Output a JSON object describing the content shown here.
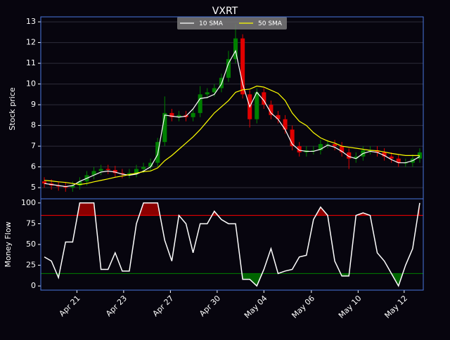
{
  "chart_data": [
    {
      "type": "candlestick",
      "title": "VXRT",
      "ylabel": "Stock price",
      "xlim": [
        -0.5,
        53.5
      ],
      "ylim": [
        4.46,
        13.24
      ],
      "yticks": [
        5,
        6,
        7,
        8,
        9,
        10,
        11,
        12,
        13
      ],
      "grid": true,
      "up_color": "#008000",
      "down_color": "#e00000",
      "open": [
        5.3,
        5.2,
        5.1,
        5.05,
        5.0,
        5.1,
        5.3,
        5.6,
        5.8,
        5.9,
        5.85,
        5.7,
        5.65,
        5.7,
        5.9,
        6.0,
        6.2,
        7.2,
        8.6,
        8.4,
        8.5,
        8.4,
        8.6,
        9.5,
        9.6,
        9.8,
        10.3,
        11.2,
        12.2,
        9.5,
        8.3,
        9.6,
        9.0,
        8.5,
        8.3,
        7.8,
        7.0,
        6.7,
        6.8,
        6.8,
        7.1,
        7.1,
        7.0,
        6.7,
        6.4,
        6.5,
        6.8,
        6.8,
        6.7,
        6.5,
        6.4,
        6.2,
        6.2,
        6.4
      ],
      "high": [
        5.5,
        5.4,
        5.3,
        5.25,
        5.3,
        5.5,
        5.8,
        6.0,
        6.1,
        6.1,
        6.05,
        5.9,
        5.9,
        6.1,
        6.2,
        6.4,
        7.4,
        9.4,
        8.8,
        8.7,
        8.7,
        8.8,
        9.9,
        9.8,
        10.0,
        10.5,
        11.6,
        12.9,
        12.4,
        9.7,
        9.8,
        9.8,
        9.2,
        8.7,
        8.5,
        8.0,
        7.2,
        7.0,
        7.0,
        7.3,
        7.3,
        7.3,
        7.2,
        6.9,
        6.7,
        7.0,
        7.0,
        7.0,
        6.9,
        6.7,
        6.6,
        6.4,
        6.6,
        6.9
      ],
      "low": [
        5.0,
        4.9,
        4.85,
        4.8,
        4.8,
        4.9,
        5.1,
        5.4,
        5.6,
        5.65,
        5.5,
        5.45,
        5.45,
        5.5,
        5.7,
        5.8,
        6.0,
        7.0,
        8.2,
        8.2,
        8.2,
        8.2,
        8.4,
        9.3,
        9.4,
        9.6,
        10.1,
        11.0,
        9.3,
        7.9,
        8.1,
        8.8,
        8.3,
        8.1,
        7.6,
        6.8,
        6.5,
        6.5,
        6.6,
        6.6,
        6.9,
        6.8,
        6.5,
        5.9,
        6.2,
        6.3,
        6.6,
        6.5,
        6.3,
        6.2,
        6.0,
        6.0,
        6.0,
        6.2
      ],
      "close": [
        5.2,
        5.1,
        5.05,
        5.0,
        5.1,
        5.3,
        5.6,
        5.8,
        5.9,
        5.85,
        5.7,
        5.65,
        5.7,
        5.9,
        6.0,
        6.2,
        7.2,
        8.6,
        8.4,
        8.5,
        8.4,
        8.6,
        9.5,
        9.6,
        9.8,
        10.3,
        11.2,
        12.2,
        9.5,
        8.3,
        9.6,
        9.0,
        8.5,
        8.3,
        7.8,
        7.0,
        6.7,
        6.8,
        6.8,
        7.1,
        7.1,
        7.0,
        6.7,
        6.4,
        6.5,
        6.8,
        6.8,
        6.7,
        6.5,
        6.4,
        6.2,
        6.2,
        6.4,
        6.7
      ],
      "series": [
        {
          "name": "10 SMA",
          "color": "#ffffff",
          "values": [
            5.2,
            5.15,
            5.1,
            5.05,
            5.1,
            5.3,
            5.45,
            5.6,
            5.75,
            5.8,
            5.75,
            5.65,
            5.6,
            5.65,
            5.8,
            6.0,
            6.6,
            8.5,
            8.45,
            8.4,
            8.45,
            8.8,
            9.3,
            9.35,
            9.5,
            10.0,
            11.0,
            11.6,
            10.0,
            8.9,
            9.6,
            9.2,
            8.6,
            8.3,
            7.8,
            7.1,
            6.8,
            6.75,
            6.75,
            6.85,
            7.05,
            6.95,
            6.75,
            6.5,
            6.4,
            6.65,
            6.75,
            6.7,
            6.55,
            6.35,
            6.2,
            6.2,
            6.3,
            6.5
          ]
        },
        {
          "name": "50 SMA",
          "color": "#ffff00",
          "values": [
            5.35,
            5.32,
            5.28,
            5.25,
            5.2,
            5.15,
            5.2,
            5.28,
            5.35,
            5.42,
            5.5,
            5.56,
            5.63,
            5.7,
            5.77,
            5.8,
            5.95,
            6.3,
            6.55,
            6.85,
            7.15,
            7.45,
            7.8,
            8.2,
            8.6,
            8.9,
            9.2,
            9.6,
            9.72,
            9.75,
            9.9,
            9.85,
            9.7,
            9.55,
            9.2,
            8.6,
            8.2,
            8.0,
            7.65,
            7.4,
            7.25,
            7.15,
            7.0,
            6.95,
            6.9,
            6.85,
            6.8,
            6.78,
            6.72,
            6.65,
            6.6,
            6.55,
            6.55,
            6.55
          ]
        }
      ]
    },
    {
      "type": "line",
      "ylabel": "Money Flow",
      "color": "#ffffff",
      "xlim": [
        -0.5,
        53.5
      ],
      "ylim": [
        -5,
        105
      ],
      "yticks": [
        0,
        25,
        50,
        75,
        100
      ],
      "xticks": [
        {
          "value": 4.6,
          "label": "Apr 21"
        },
        {
          "value": 11.2,
          "label": "Apr 23"
        },
        {
          "value": 17.8,
          "label": "Apr 27"
        },
        {
          "value": 24.4,
          "label": "Apr 30"
        },
        {
          "value": 31.0,
          "label": "May 04"
        },
        {
          "value": 37.7,
          "label": "May 06"
        },
        {
          "value": 44.3,
          "label": "May 10"
        },
        {
          "value": 50.8,
          "label": "May 12"
        }
      ],
      "values": [
        35,
        30,
        10,
        53,
        53,
        100,
        100,
        100,
        20,
        20,
        40,
        18,
        18,
        75,
        100,
        100,
        100,
        55,
        30,
        85,
        75,
        40,
        75,
        75,
        90,
        80,
        75,
        75,
        8,
        8,
        0,
        20,
        45,
        15,
        18,
        20,
        35,
        37,
        80,
        95,
        85,
        30,
        12,
        12,
        85,
        88,
        85,
        40,
        30,
        15,
        0,
        25,
        45,
        100
      ],
      "overbought": {
        "value": 85,
        "color": "#ff0000",
        "fill": "#8b0000"
      },
      "oversold": {
        "value": 15,
        "color": "#008000",
        "fill": "#006400"
      }
    }
  ]
}
